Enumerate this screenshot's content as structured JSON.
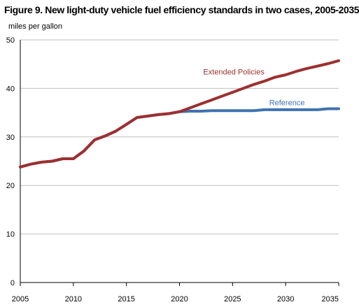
{
  "chart_data": {
    "type": "line",
    "title": "Figure 9. New light-duty vehicle fuel efficiency standards in two cases, 2005-2035",
    "ylabel": "miles per gallon",
    "xlabel": "",
    "xlim": [
      2005,
      2035
    ],
    "ylim": [
      0,
      50
    ],
    "x_ticks": [
      2005,
      2010,
      2015,
      2020,
      2025,
      2030,
      2035
    ],
    "y_ticks": [
      0,
      10,
      20,
      30,
      40,
      50
    ],
    "grid": "horizontal",
    "x": [
      2005,
      2006,
      2007,
      2008,
      2009,
      2010,
      2011,
      2012,
      2013,
      2014,
      2015,
      2016,
      2017,
      2018,
      2019,
      2020,
      2021,
      2022,
      2023,
      2024,
      2025,
      2026,
      2027,
      2028,
      2029,
      2030,
      2031,
      2032,
      2033,
      2034,
      2035
    ],
    "series": [
      {
        "name": "Reference",
        "color": "#3F72B0",
        "values": [
          23.8,
          24.4,
          24.8,
          25.0,
          25.5,
          25.5,
          27.1,
          29.4,
          30.2,
          31.2,
          32.6,
          34.0,
          34.3,
          34.6,
          34.8,
          35.2,
          35.3,
          35.3,
          35.4,
          35.4,
          35.4,
          35.4,
          35.4,
          35.6,
          35.6,
          35.6,
          35.6,
          35.6,
          35.6,
          35.8,
          35.8
        ]
      },
      {
        "name": "Extended Policies",
        "color": "#9E2F2F",
        "values": [
          23.8,
          24.4,
          24.8,
          25.0,
          25.5,
          25.5,
          27.1,
          29.4,
          30.2,
          31.2,
          32.6,
          34.0,
          34.3,
          34.6,
          34.8,
          35.2,
          36.0,
          36.8,
          37.6,
          38.4,
          39.2,
          40.0,
          40.8,
          41.5,
          42.3,
          42.8,
          43.5,
          44.1,
          44.6,
          45.1,
          45.7
        ]
      }
    ]
  }
}
